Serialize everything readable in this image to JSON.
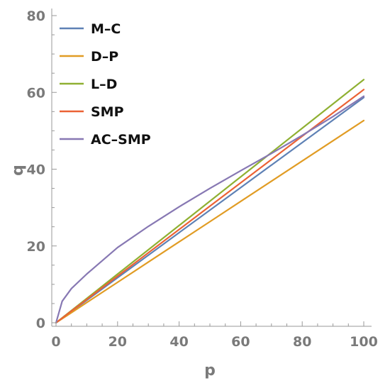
{
  "chart_data": {
    "type": "line",
    "title": "",
    "xlabel": "p",
    "ylabel": "q",
    "xlim": [
      0,
      100
    ],
    "ylim": [
      0,
      80
    ],
    "xticks": [
      0,
      20,
      40,
      60,
      80,
      100
    ],
    "yticks": [
      0,
      20,
      40,
      60,
      80
    ],
    "grid": false,
    "legend_position": "top-left",
    "x": [
      0,
      2,
      5,
      10,
      20,
      30,
      40,
      50,
      60,
      70,
      80,
      90,
      100
    ],
    "series": [
      {
        "name": "M–C",
        "color": "#5e81b5",
        "values": [
          0,
          1.17,
          2.93,
          5.87,
          11.73,
          17.6,
          23.47,
          29.33,
          35.2,
          41.07,
          46.93,
          52.8,
          58.67
        ]
      },
      {
        "name": "D–P",
        "color": "#e19c24",
        "values": [
          0,
          1.05,
          2.63,
          5.27,
          10.53,
          15.8,
          21.07,
          26.33,
          31.6,
          36.87,
          42.13,
          47.4,
          52.67
        ]
      },
      {
        "name": "L–D",
        "color": "#8fb032",
        "values": [
          0,
          1.27,
          3.17,
          6.33,
          12.67,
          19.0,
          25.33,
          31.67,
          38.0,
          44.33,
          50.67,
          57.0,
          63.33
        ]
      },
      {
        "name": "SMP",
        "color": "#eb6235",
        "values": [
          0,
          1.21,
          3.04,
          6.07,
          12.15,
          18.22,
          24.29,
          30.37,
          36.44,
          42.51,
          48.59,
          54.66,
          60.73
        ]
      },
      {
        "name": "AC–SMP",
        "color": "#8778b3",
        "values": [
          0,
          5.6,
          8.9,
          12.7,
          19.6,
          25.1,
          30.2,
          35.0,
          39.6,
          44.1,
          48.8,
          53.7,
          59.0
        ]
      }
    ]
  }
}
